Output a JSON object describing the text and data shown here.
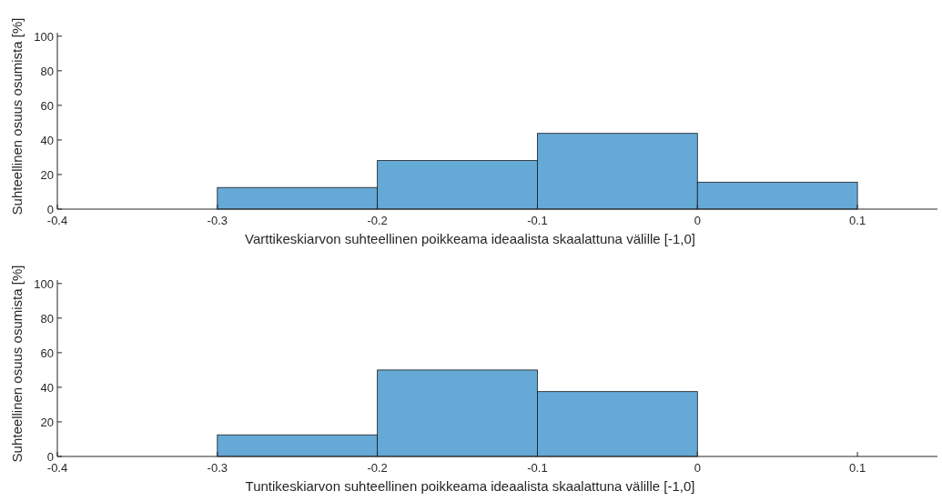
{
  "chart_data": [
    {
      "type": "histogram",
      "xlabel": "Varttikeskiarvon suhteellinen poikkeama ideaalista skaalattuna välille [-1,0]",
      "ylabel": "Suhteellinen osuus osumista [%]",
      "bins": [
        -0.3,
        -0.2,
        -0.1,
        0,
        0.1
      ],
      "values": [
        12.5,
        28.1,
        43.8,
        15.6
      ],
      "color": "#65a9d7",
      "xlim": [
        -0.4,
        0.15
      ],
      "xticks": [
        -0.4,
        -0.3,
        -0.2,
        -0.1,
        0,
        0.1
      ],
      "ylim": [
        0,
        102
      ],
      "yticks": [
        0,
        20,
        40,
        60,
        80,
        100
      ]
    },
    {
      "type": "histogram",
      "xlabel": "Tuntikeskiarvon suhteellinen poikkeama ideaalista skaalattuna välille [-1,0]",
      "ylabel": "Suhteellinen osuus osumista [%]",
      "bins": [
        -0.3,
        -0.2,
        -0.1,
        0
      ],
      "values": [
        12.5,
        50,
        37.5
      ],
      "color": "#65a9d7",
      "xlim": [
        -0.4,
        0.15
      ],
      "xticks": [
        -0.4,
        -0.3,
        -0.2,
        -0.1,
        0,
        0.1
      ],
      "ylim": [
        0,
        102
      ],
      "yticks": [
        0,
        20,
        40,
        60,
        80,
        100
      ]
    }
  ]
}
